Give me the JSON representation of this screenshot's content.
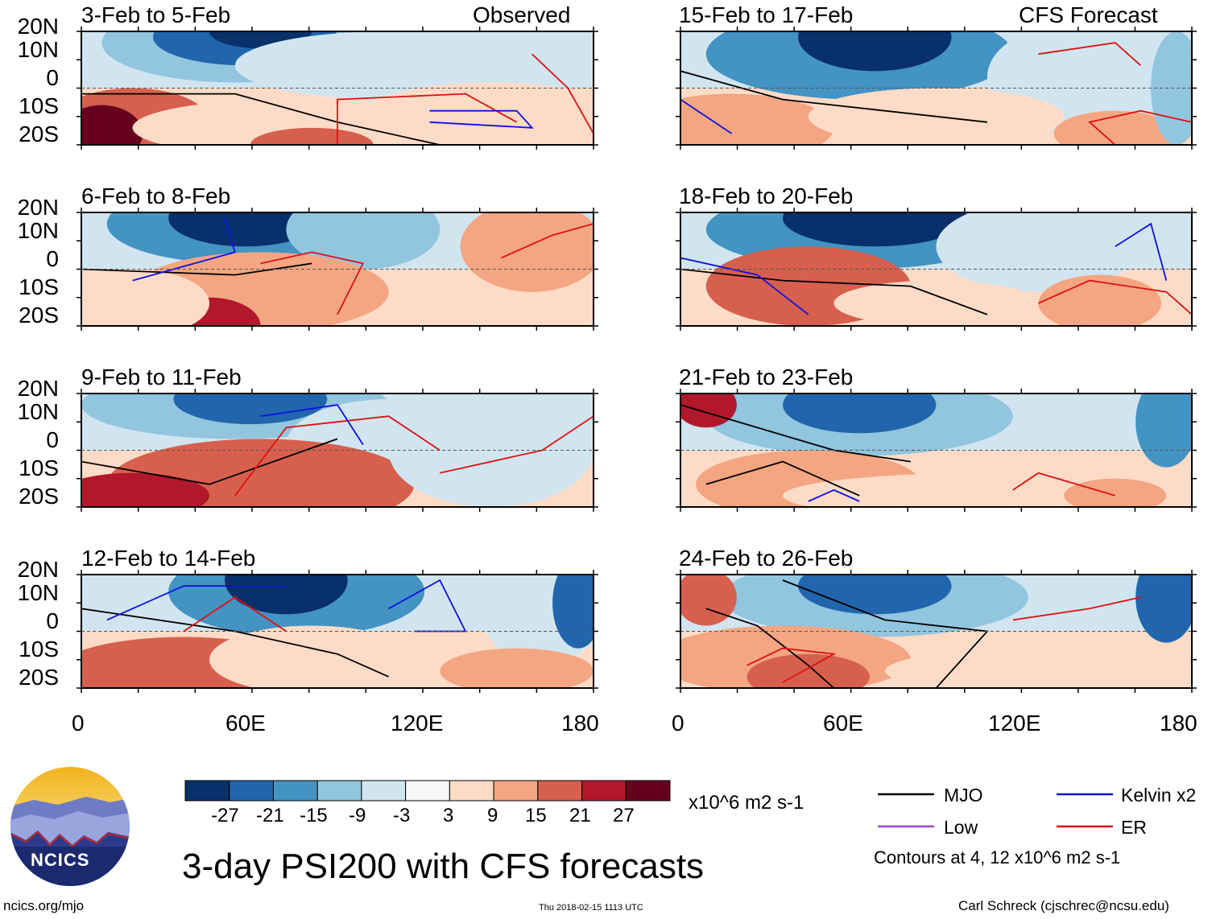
{
  "chart_data": {
    "type": "heatmap",
    "title": "3-day PSI200 with CFS forecasts",
    "units": "x10^6 m2 s-1",
    "ylabels": [
      "20N",
      "10N",
      "0",
      "10S",
      "20S"
    ],
    "xlabels": [
      "0",
      "60E",
      "120E",
      "180"
    ],
    "lat_range": [
      -20,
      20
    ],
    "lon_range": [
      0,
      180
    ],
    "colorbar": {
      "ticks": [
        "-27",
        "-21",
        "-15",
        "-9",
        "-3",
        "3",
        "9",
        "15",
        "21",
        "27"
      ],
      "colors": [
        "#08306b",
        "#2166ac",
        "#4393c3",
        "#92c5de",
        "#d1e5f0",
        "#f7f7f7",
        "#fddbc7",
        "#f4a582",
        "#d6604d",
        "#b2182b",
        "#67001f"
      ]
    },
    "panels": [
      {
        "label": "3-Feb to 5-Feb",
        "tag": "Observed",
        "column": "left",
        "row": 0
      },
      {
        "label": "6-Feb to 8-Feb",
        "tag": "",
        "column": "left",
        "row": 1
      },
      {
        "label": "9-Feb to 11-Feb",
        "tag": "",
        "column": "left",
        "row": 2
      },
      {
        "label": "12-Feb to 14-Feb",
        "tag": "",
        "column": "left",
        "row": 3
      },
      {
        "label": "15-Feb to 17-Feb",
        "tag": "CFS Forecast",
        "column": "right",
        "row": 0
      },
      {
        "label": "18-Feb to 20-Feb",
        "tag": "",
        "column": "right",
        "row": 1
      },
      {
        "label": "21-Feb to 23-Feb",
        "tag": "",
        "column": "right",
        "row": 2
      },
      {
        "label": "24-Feb to 26-Feb",
        "tag": "",
        "column": "right",
        "row": 3
      }
    ],
    "legend": {
      "items": [
        {
          "name": "MJO",
          "color": "#000000"
        },
        {
          "name": "Kelvin x2",
          "color": "#1010e0"
        },
        {
          "name": "Low",
          "color": "#a040d0"
        },
        {
          "name": "ER",
          "color": "#e01010"
        }
      ],
      "note": "Contours at 4, 12 x10^6 m2 s-1"
    }
  },
  "footer": {
    "logo_text": "NCICS",
    "site": "ncics.org/mjo",
    "timestamp": "Thu 2018-02-15 1113 UTC",
    "author": "Carl Schreck (cjschrec@ncsu.edu)"
  }
}
